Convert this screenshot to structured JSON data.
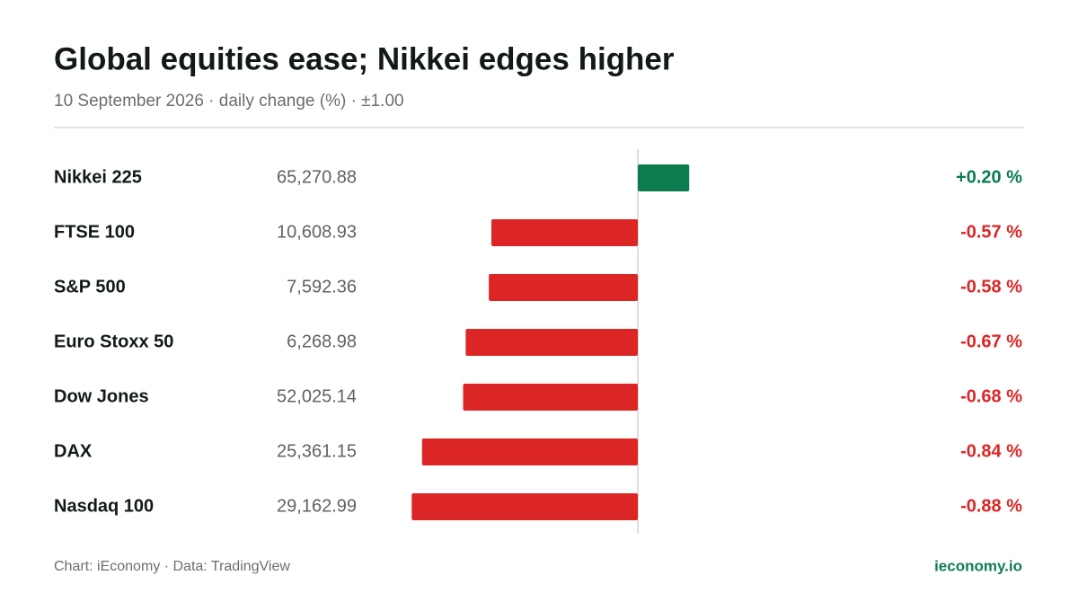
{
  "chart_data": {
    "type": "bar",
    "orientation": "horizontal",
    "title": "Global equities ease; Nikkei edges higher",
    "subtitle": "10 September 2026 · daily change (%) · ±1.00",
    "categories": [
      "Nikkei 225",
      "FTSE 100",
      "S&P 500",
      "Euro Stoxx 50",
      "Dow Jones",
      "DAX",
      "Nasdaq 100"
    ],
    "levels": [
      "65,270.88",
      "10,608.93",
      "7,592.36",
      "6,268.98",
      "52,025.14",
      "25,361.15",
      "29,162.99"
    ],
    "values": [
      0.2,
      -0.57,
      -0.58,
      -0.67,
      -0.68,
      -0.84,
      -0.88
    ],
    "value_labels": [
      "+0.20 %",
      "-0.57 %",
      "-0.58 %",
      "-0.67 %",
      "-0.68 %",
      "-0.84 %",
      "-0.88 %"
    ],
    "positive_color": "#0c7b4e",
    "negative_color": "#dc2626",
    "xlim": [
      -1,
      1
    ],
    "source": "Chart: iEconomy · Data: TradingView",
    "brand": "ieconomy.io"
  }
}
